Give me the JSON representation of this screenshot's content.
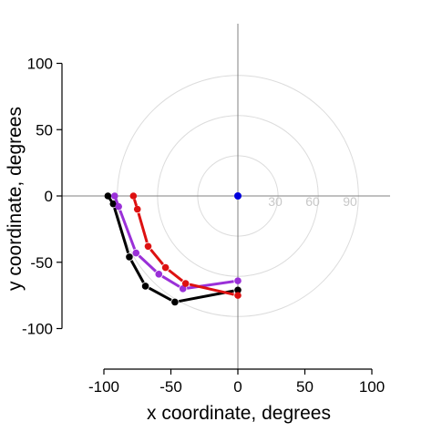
{
  "chart_data": {
    "type": "line",
    "xlabel": "x coordinate, degrees",
    "ylabel": "y coordinate, degrees",
    "xlim": [
      -130,
      120
    ],
    "ylim": [
      -130,
      130
    ],
    "xticks": [
      -100,
      -50,
      0,
      50,
      100
    ],
    "yticks": [
      -100,
      -50,
      0,
      50,
      100
    ],
    "xtick_labels": [
      "-100",
      "-50",
      "0",
      "50",
      "100"
    ],
    "ytick_labels": [
      "-100",
      "-50",
      "0",
      "50",
      "100"
    ],
    "grid": false,
    "polar_rings": {
      "radii": [
        30,
        60,
        90
      ],
      "labels": [
        "30",
        "60",
        "90"
      ],
      "color": "#dcdcdc",
      "label_color": "#c8c8c8"
    },
    "crosshair_color": "#808080",
    "center_point": {
      "x": 0,
      "y": 0,
      "color": "#0000dd"
    },
    "series": [
      {
        "color": "#000000",
        "x": [
          -97,
          -93,
          -81,
          -69,
          -47,
          0
        ],
        "y": [
          0,
          -6,
          -46,
          -68,
          -80,
          -71
        ]
      },
      {
        "color": "#9a30d8",
        "x": [
          -92,
          -89,
          -76,
          -59,
          -41,
          0
        ],
        "y": [
          0,
          -8,
          -43,
          -59,
          -70,
          -64
        ]
      },
      {
        "color": "#dd1111",
        "x": [
          -78,
          -75,
          -67,
          -54,
          -39,
          0
        ],
        "y": [
          0,
          -10,
          -38,
          -54,
          -66,
          -75
        ]
      }
    ]
  }
}
